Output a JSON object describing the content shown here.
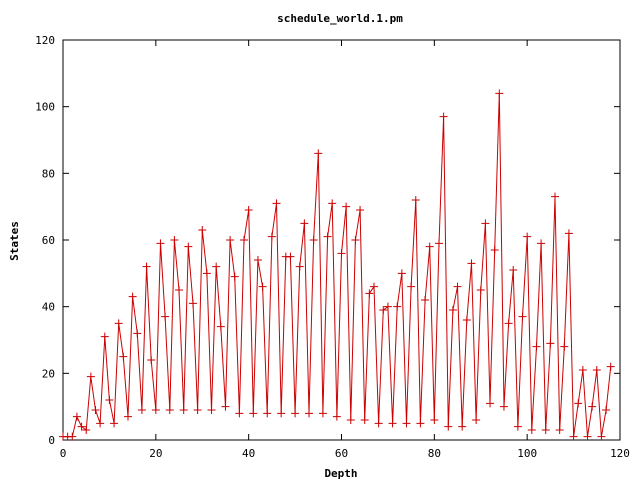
{
  "chart_data": {
    "type": "line",
    "title": "schedule_world.1.pm",
    "xlabel": "Depth",
    "ylabel": "States",
    "xlim": [
      0,
      120
    ],
    "ylim": [
      0,
      120
    ],
    "xticks": [
      "0",
      "20",
      "40",
      "60",
      "80",
      "100",
      "120"
    ],
    "yticks": [
      "0",
      "20",
      "40",
      "60",
      "80",
      "100",
      "120"
    ],
    "series": [
      {
        "color": "#cc0000",
        "marker": "plus",
        "x": [
          0,
          1,
          2,
          3,
          4,
          5,
          6,
          7,
          8,
          9,
          10,
          11,
          12,
          13,
          14,
          15,
          16,
          17,
          18,
          19,
          20,
          21,
          22,
          23,
          24,
          25,
          26,
          27,
          28,
          29,
          30,
          31,
          32,
          33,
          34,
          35,
          36,
          37,
          38,
          39,
          40,
          41,
          42,
          43,
          44,
          45,
          46,
          47,
          48,
          49,
          50,
          51,
          52,
          53,
          54,
          55,
          56,
          57,
          58,
          59,
          60,
          61,
          62,
          63,
          64,
          65,
          66,
          67,
          68,
          69,
          70,
          71,
          72,
          73,
          74,
          75,
          76,
          77,
          78,
          79,
          80,
          81,
          82,
          83,
          84,
          85,
          86,
          87,
          88,
          89,
          90,
          91,
          92,
          93,
          94,
          95,
          96,
          97,
          98,
          99,
          100,
          101,
          102,
          103,
          104,
          105,
          106,
          107,
          108,
          109,
          110,
          111,
          112,
          113,
          114,
          115,
          116,
          117,
          118
        ],
        "y": [
          1,
          1,
          1,
          7,
          4,
          3,
          19,
          9,
          5,
          31,
          12,
          5,
          35,
          25,
          7,
          43,
          32,
          9,
          52,
          24,
          9,
          59,
          37,
          9,
          60,
          45,
          9,
          58,
          41,
          9,
          63,
          50,
          9,
          52,
          34,
          10,
          60,
          49,
          8,
          60,
          69,
          8,
          54,
          46,
          8,
          61,
          71,
          8,
          55,
          55,
          8,
          52,
          65,
          8,
          60,
          86,
          8,
          61,
          71,
          7,
          56,
          70,
          6,
          60,
          69,
          6,
          44,
          46,
          5,
          39,
          40,
          5,
          40,
          50,
          5,
          46,
          72,
          5,
          42,
          58,
          6,
          59,
          97,
          4,
          39,
          46,
          4,
          36,
          53,
          6,
          45,
          65,
          11,
          57,
          104,
          10,
          35,
          51,
          4,
          37,
          61,
          3,
          28,
          59,
          3,
          29,
          73,
          3,
          28,
          62,
          1,
          11,
          21,
          1,
          10,
          21,
          1,
          9,
          22
        ]
      }
    ]
  }
}
